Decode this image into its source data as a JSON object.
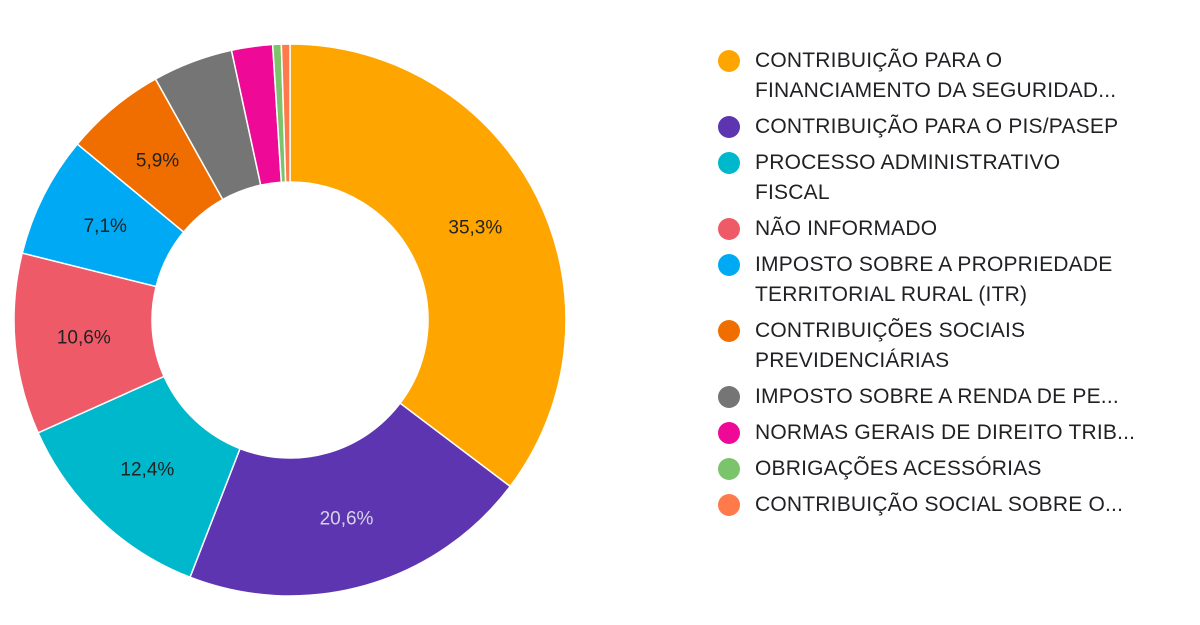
{
  "chart_data": {
    "type": "pie",
    "subtype": "donut",
    "legend_position": "right",
    "slices": [
      {
        "label": "CONTRIBUIÇÃO PARA O FINANCIAMENTO DA SEGURIDAD...",
        "value": 35.3,
        "display": "35,3%",
        "color": "#FFA500",
        "label_color": "#222222"
      },
      {
        "label": "CONTRIBUIÇÃO PARA O PIS/PASEP",
        "value": 20.6,
        "display": "20,6%",
        "color": "#5E35B1",
        "label_color": "#D7D3E8"
      },
      {
        "label": "PROCESSO ADMINISTRATIVO FISCAL",
        "value": 12.4,
        "display": "12,4%",
        "color": "#00B8CC",
        "label_color": "#222222"
      },
      {
        "label": "NÃO INFORMADO",
        "value": 10.6,
        "display": "10,6%",
        "color": "#EF5A68",
        "label_color": "#222222"
      },
      {
        "label": "IMPOSTO SOBRE A PROPRIEDADE TERRITORIAL RURAL (ITR)",
        "value": 7.1,
        "display": "7,1%",
        "color": "#00A9F4",
        "label_color": "#222222"
      },
      {
        "label": "CONTRIBUIÇÕES SOCIAIS PREVIDENCIÁRIAS",
        "value": 5.9,
        "display": "5,9%",
        "color": "#F06E00",
        "label_color": "#222222"
      },
      {
        "label": "IMPOSTO SOBRE A RENDA DE PE...",
        "value": 4.7,
        "display": "",
        "color": "#757575",
        "label_color": "#222222"
      },
      {
        "label": "NORMAS GERAIS DE DIREITO TRIB...",
        "value": 2.4,
        "display": "",
        "color": "#EE0A97",
        "label_color": "#222222"
      },
      {
        "label": "OBRIGAÇÕES ACESSÓRIAS",
        "value": 0.5,
        "display": "",
        "color": "#7CC46B",
        "label_color": "#222222"
      },
      {
        "label": "CONTRIBUIÇÃO SOCIAL SOBRE O...",
        "value": 0.5,
        "display": "",
        "color": "#FF7A4A",
        "label_color": "#222222"
      }
    ]
  },
  "legend": {
    "items": [
      {
        "text": "CONTRIBUIÇÃO PARA O\nFINANCIAMENTO DA SEGURIDAD...",
        "color": "#FFA500"
      },
      {
        "text": "CONTRIBUIÇÃO PARA O PIS/PASEP",
        "color": "#5E35B1"
      },
      {
        "text": "PROCESSO ADMINISTRATIVO\nFISCAL",
        "color": "#00B8CC"
      },
      {
        "text": "NÃO INFORMADO",
        "color": "#EF5A68"
      },
      {
        "text": "IMPOSTO SOBRE A PROPRIEDADE\nTERRITORIAL RURAL (ITR)",
        "color": "#00A9F4"
      },
      {
        "text": "CONTRIBUIÇÕES SOCIAIS\nPREVIDENCIÁRIAS",
        "color": "#F06E00"
      },
      {
        "text": "IMPOSTO SOBRE A RENDA DE PE...",
        "color": "#757575"
      },
      {
        "text": "NORMAS GERAIS DE DIREITO TRIB...",
        "color": "#EE0A97"
      },
      {
        "text": "OBRIGAÇÕES ACESSÓRIAS",
        "color": "#7CC46B"
      },
      {
        "text": "CONTRIBUIÇÃO SOCIAL SOBRE O...",
        "color": "#FF7A4A"
      }
    ]
  }
}
